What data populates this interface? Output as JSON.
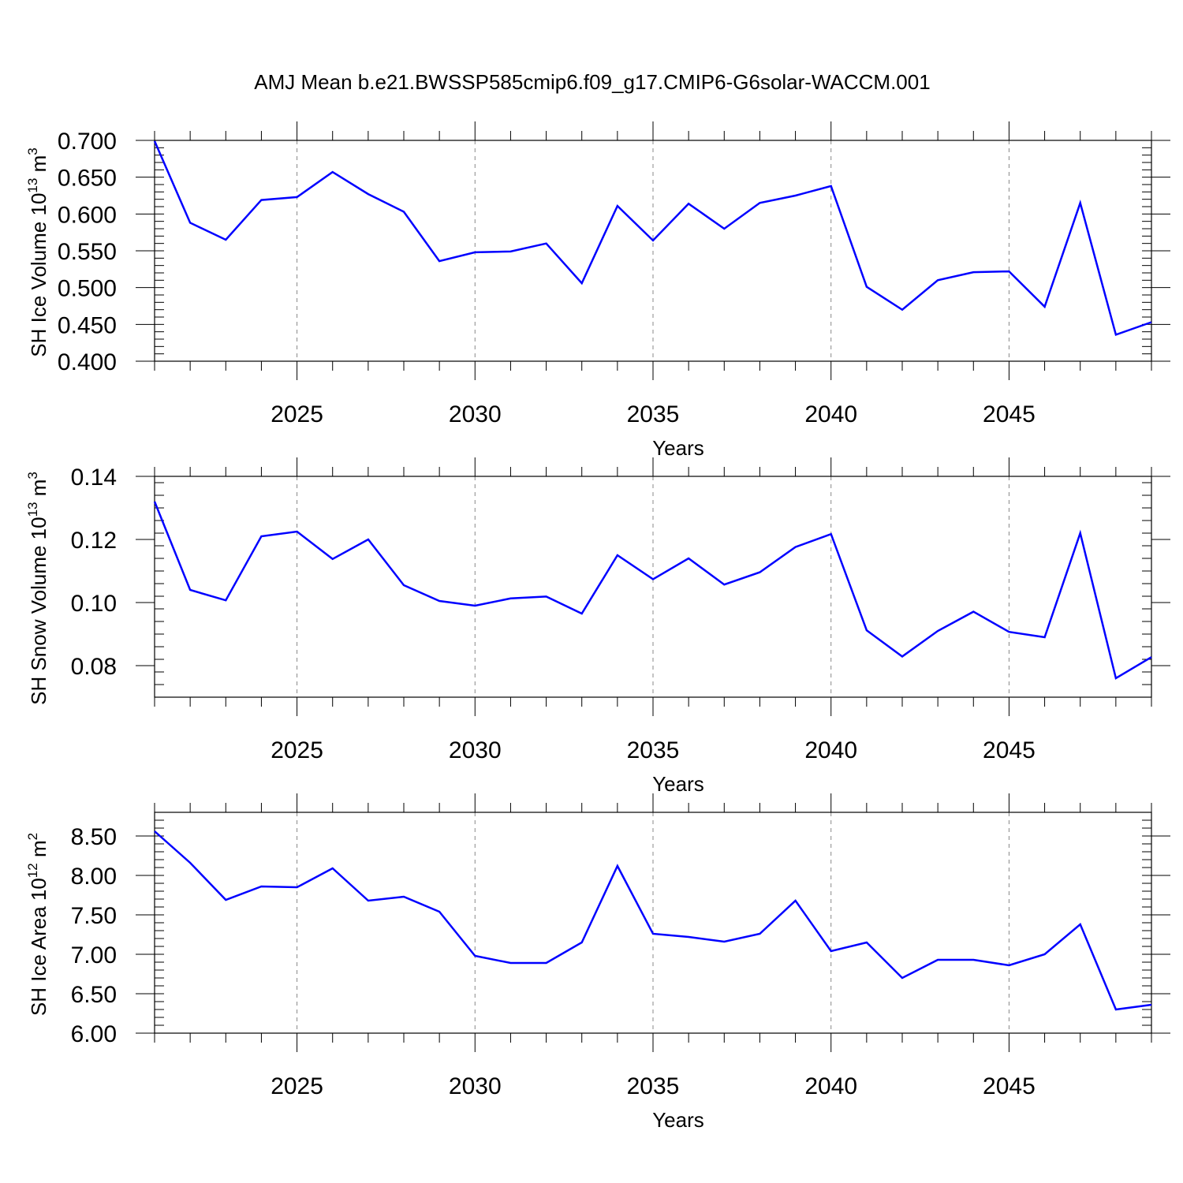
{
  "title": "AMJ Mean b.e21.BWSSP585cmip6.f09_g17.CMIP6-G6solar-WACCM.001",
  "colors": {
    "line": "#0000ff",
    "axis": "#000000",
    "grid": "#888888"
  },
  "chart_data": [
    {
      "type": "line",
      "ylabel": {
        "main": "SH Ice Volume 10",
        "sup1": "13",
        "unit": " m",
        "sup2": "3"
      },
      "xlabel": "Years",
      "xlim": [
        2021,
        2049
      ],
      "ylim": [
        0.4,
        0.7
      ],
      "yticks": [
        0.4,
        0.45,
        0.5,
        0.55,
        0.6,
        0.65,
        0.7
      ],
      "ytick_labels": [
        "0.400",
        "0.450",
        "0.500",
        "0.550",
        "0.600",
        "0.650",
        "0.700"
      ],
      "xticks": [
        2025,
        2030,
        2035,
        2040,
        2045
      ],
      "xtick_labels": [
        "2025",
        "2030",
        "2035",
        "2040",
        "2045"
      ],
      "x": [
        2021,
        2022,
        2023,
        2024,
        2025,
        2026,
        2027,
        2028,
        2029,
        2030,
        2031,
        2032,
        2033,
        2034,
        2035,
        2036,
        2037,
        2038,
        2039,
        2040,
        2041,
        2042,
        2043,
        2044,
        2045,
        2046,
        2047,
        2048,
        2049
      ],
      "values": [
        0.699,
        0.588,
        0.565,
        0.619,
        0.623,
        0.657,
        0.627,
        0.603,
        0.536,
        0.548,
        0.549,
        0.56,
        0.506,
        0.611,
        0.564,
        0.614,
        0.58,
        0.615,
        0.625,
        0.638,
        0.501,
        0.47,
        0.51,
        0.521,
        0.522,
        0.474,
        0.615,
        0.436,
        0.453
      ]
    },
    {
      "type": "line",
      "ylabel": {
        "main": "SH Snow Volume 10",
        "sup1": "13",
        "unit": " m",
        "sup2": "3"
      },
      "xlabel": "Years",
      "xlim": [
        2021,
        2049
      ],
      "ylim": [
        0.07,
        0.14
      ],
      "yticks": [
        0.08,
        0.1,
        0.12,
        0.14
      ],
      "ytick_labels": [
        "0.08",
        "0.10",
        "0.12",
        "0.14"
      ],
      "xticks": [
        2025,
        2030,
        2035,
        2040,
        2045
      ],
      "xtick_labels": [
        "2025",
        "2030",
        "2035",
        "2040",
        "2045"
      ],
      "x": [
        2021,
        2022,
        2023,
        2024,
        2025,
        2026,
        2027,
        2028,
        2029,
        2030,
        2031,
        2032,
        2033,
        2034,
        2035,
        2036,
        2037,
        2038,
        2039,
        2040,
        2041,
        2042,
        2043,
        2044,
        2045,
        2046,
        2047,
        2048,
        2049
      ],
      "values": [
        0.132,
        0.104,
        0.1007,
        0.121,
        0.1225,
        0.1138,
        0.12,
        0.1055,
        0.1005,
        0.099,
        0.1013,
        0.1019,
        0.0965,
        0.115,
        0.1074,
        0.114,
        0.1057,
        0.1096,
        0.1176,
        0.1217,
        0.0912,
        0.0829,
        0.091,
        0.0971,
        0.0907,
        0.089,
        0.122,
        0.076,
        0.0827
      ]
    },
    {
      "type": "line",
      "ylabel": {
        "main": "SH Ice Area 10",
        "sup1": "12",
        "unit": " m",
        "sup2": "2"
      },
      "xlabel": "Years",
      "xlim": [
        2021,
        2049
      ],
      "ylim": [
        6.0,
        8.8
      ],
      "yticks": [
        6.0,
        6.5,
        7.0,
        7.5,
        8.0,
        8.5
      ],
      "ytick_labels": [
        "6.00",
        "6.50",
        "7.00",
        "7.50",
        "8.00",
        "8.50"
      ],
      "xticks": [
        2025,
        2030,
        2035,
        2040,
        2045
      ],
      "xtick_labels": [
        "2025",
        "2030",
        "2035",
        "2040",
        "2045"
      ],
      "x": [
        2021,
        2022,
        2023,
        2024,
        2025,
        2026,
        2027,
        2028,
        2029,
        2030,
        2031,
        2032,
        2033,
        2034,
        2035,
        2036,
        2037,
        2038,
        2039,
        2040,
        2041,
        2042,
        2043,
        2044,
        2045,
        2046,
        2047,
        2048,
        2049
      ],
      "values": [
        8.56,
        8.16,
        7.69,
        7.86,
        7.85,
        8.09,
        7.68,
        7.73,
        7.54,
        6.98,
        6.89,
        6.89,
        7.15,
        8.12,
        7.26,
        7.22,
        7.16,
        7.26,
        7.68,
        7.04,
        7.15,
        6.7,
        6.93,
        6.93,
        6.86,
        7.0,
        7.38,
        6.3,
        6.36
      ]
    }
  ]
}
